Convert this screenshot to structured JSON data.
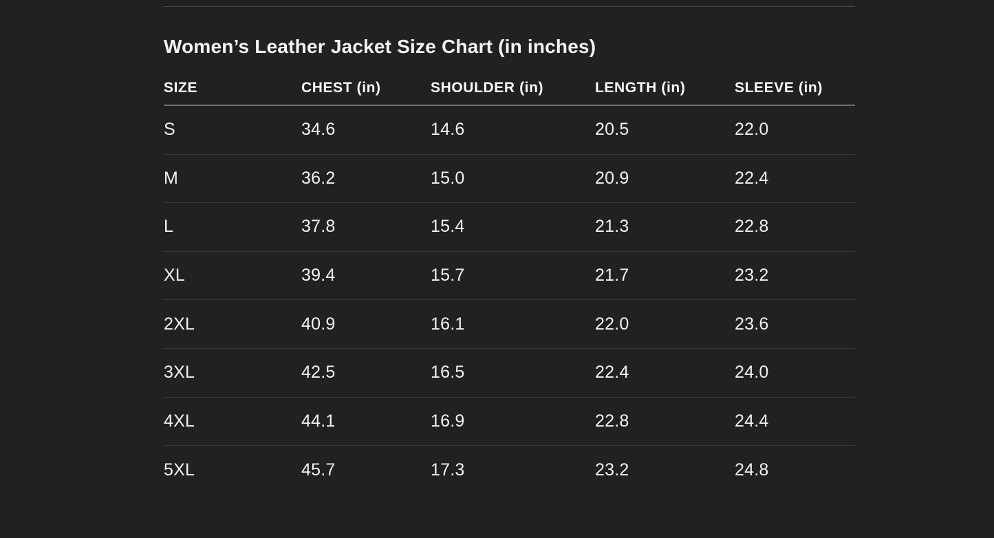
{
  "colors": {
    "background": "#212121",
    "title_text": "#f5f5f7",
    "header_text": "#fbfbfd",
    "cell_text": "#f2f2f2",
    "top_divider": "#4a4a4a",
    "header_divider": "#6e6e6e",
    "row_divider": "#393939"
  },
  "table": {
    "title": "Women’s Leather Jacket Size Chart (in inches)",
    "columns": [
      "SIZE",
      "CHEST (in)",
      "SHOULDER (in)",
      "LENGTH (in)",
      "SLEEVE (in)"
    ],
    "rows": [
      {
        "cells": [
          "S",
          "34.6",
          "14.6",
          "20.5",
          "22.0"
        ]
      },
      {
        "cells": [
          "M",
          "36.2",
          "15.0",
          "20.9",
          "22.4"
        ]
      },
      {
        "cells": [
          "L",
          "37.8",
          "15.4",
          "21.3",
          "22.8"
        ]
      },
      {
        "cells": [
          "XL",
          "39.4",
          "15.7",
          "21.7",
          "23.2"
        ]
      },
      {
        "cells": [
          "2XL",
          "40.9",
          "16.1",
          "22.0",
          "23.6"
        ]
      },
      {
        "cells": [
          "3XL",
          "42.5",
          "16.5",
          "22.4",
          "24.0"
        ]
      },
      {
        "cells": [
          "4XL",
          "44.1",
          "16.9",
          "22.8",
          "24.4"
        ]
      },
      {
        "cells": [
          "5XL",
          "45.7",
          "17.3",
          "23.2",
          "24.8"
        ]
      }
    ]
  },
  "chart_data": {
    "type": "table",
    "title": "Women’s Leather Jacket Size Chart (in inches)",
    "columns": [
      "SIZE",
      "CHEST (in)",
      "SHOULDER (in)",
      "LENGTH (in)",
      "SLEEVE (in)"
    ],
    "units": "inches",
    "rows": [
      [
        "S",
        34.6,
        14.6,
        20.5,
        22.0
      ],
      [
        "M",
        36.2,
        15.0,
        20.9,
        22.4
      ],
      [
        "L",
        37.8,
        15.4,
        21.3,
        22.8
      ],
      [
        "XL",
        39.4,
        15.7,
        21.7,
        23.2
      ],
      [
        "2XL",
        40.9,
        16.1,
        22.0,
        23.6
      ],
      [
        "3XL",
        42.5,
        16.5,
        22.4,
        24.0
      ],
      [
        "4XL",
        44.1,
        16.9,
        22.8,
        24.4
      ],
      [
        "5XL",
        45.7,
        17.3,
        23.2,
        24.8
      ]
    ]
  }
}
